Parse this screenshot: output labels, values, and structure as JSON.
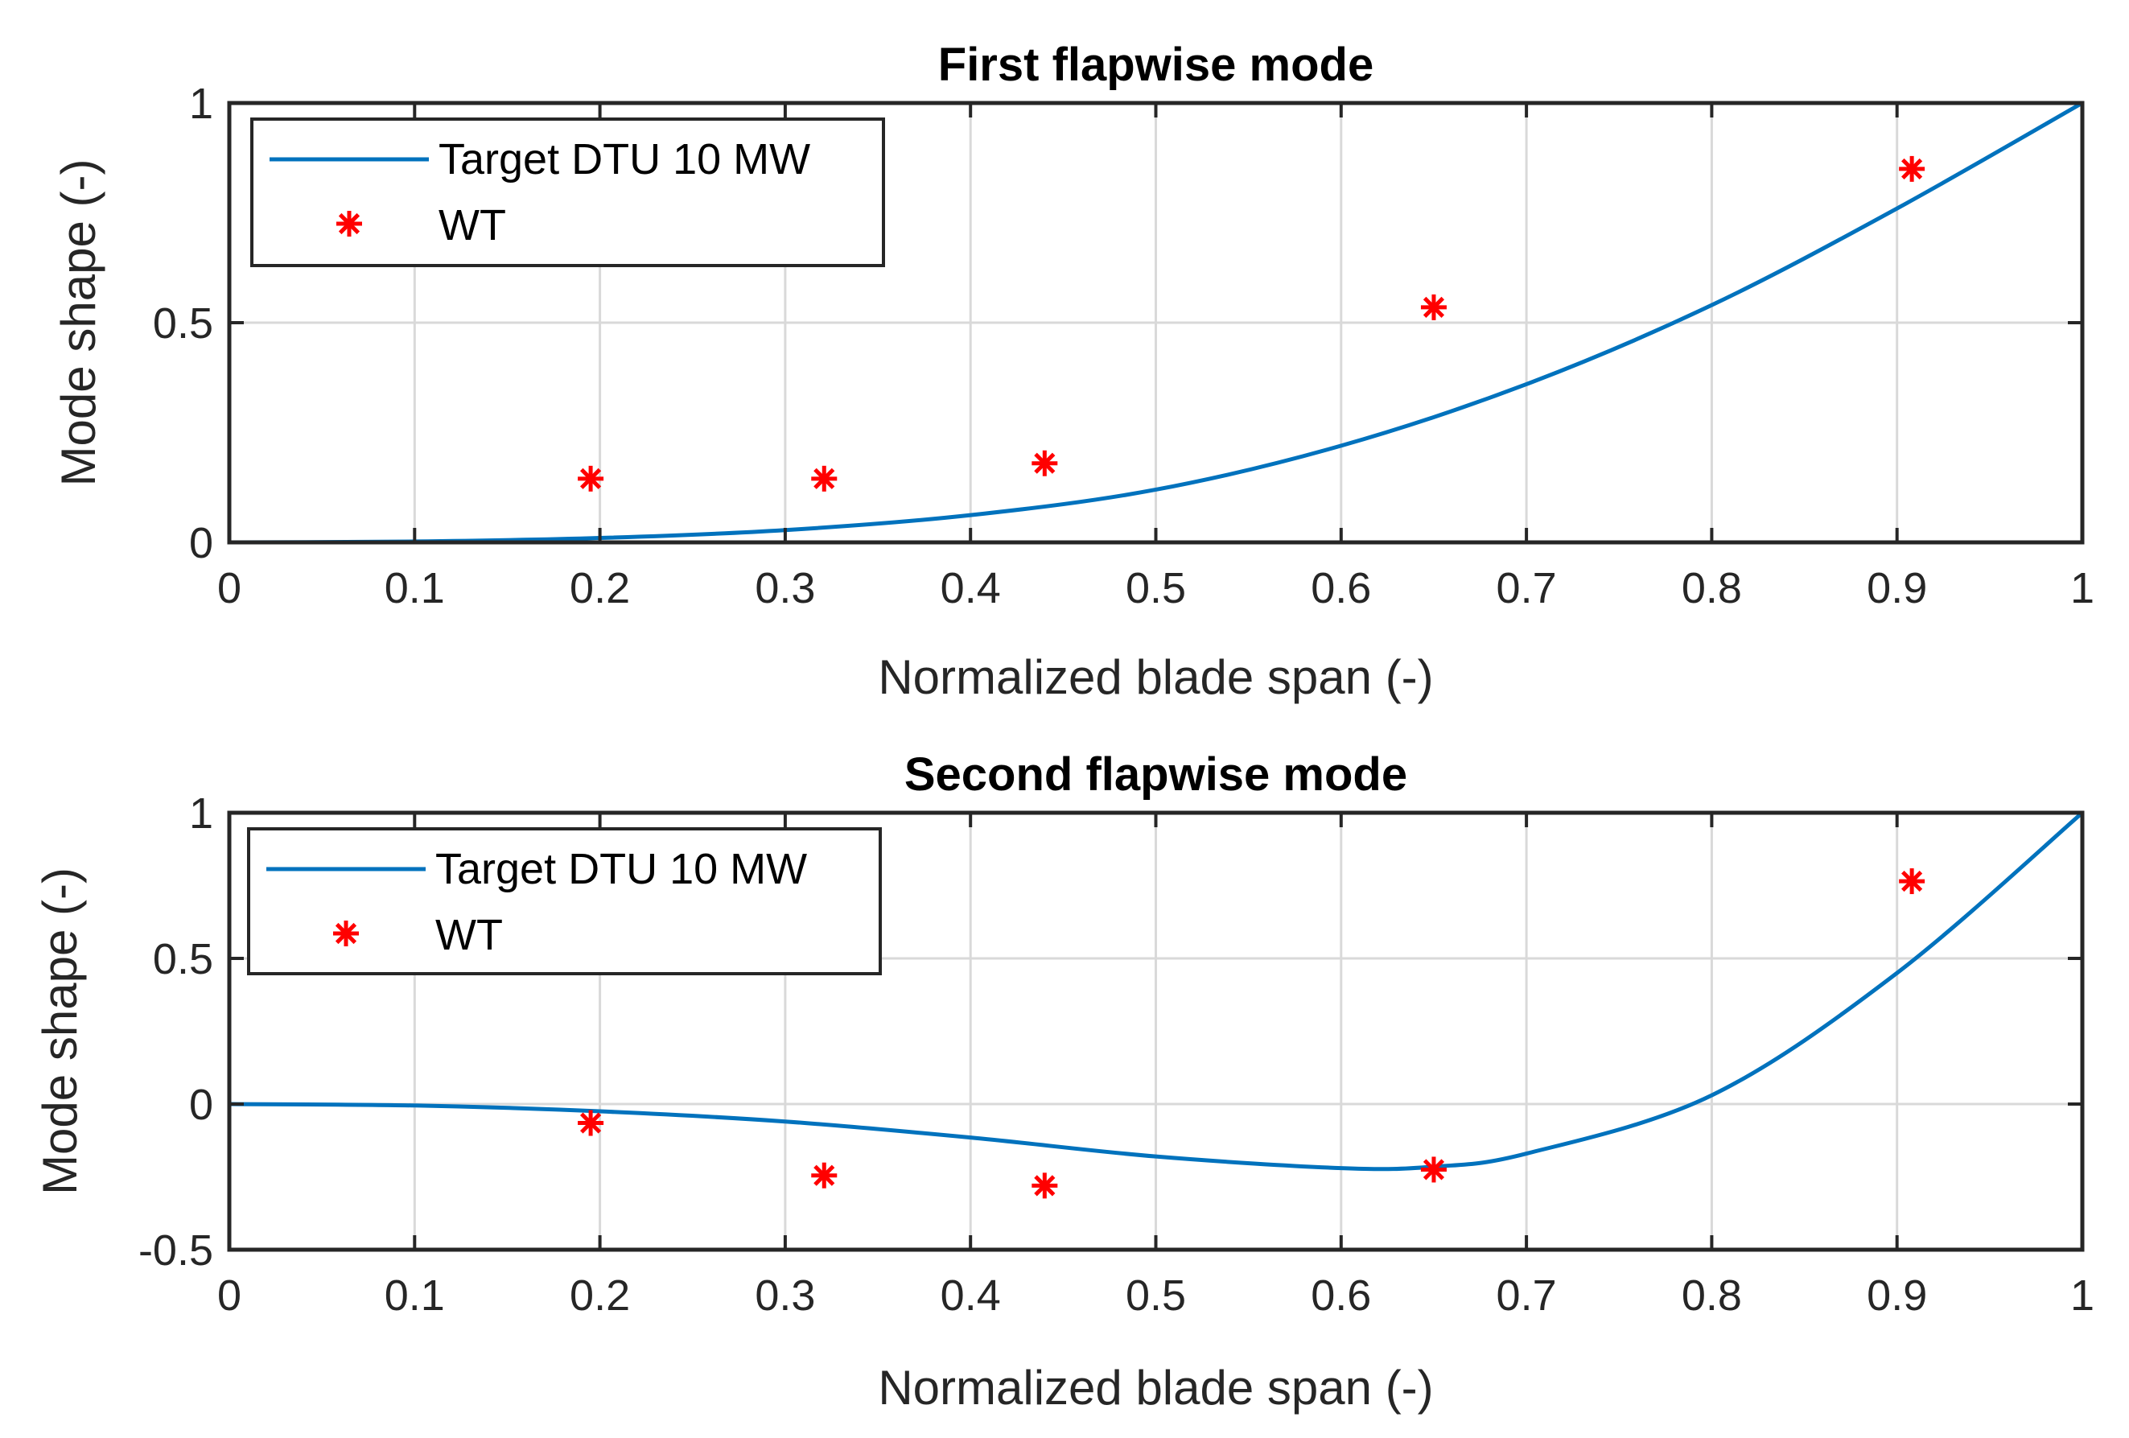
{
  "colors": {
    "line": "#0072BD",
    "marker": "#FF0000",
    "axis": "#262626",
    "grid": "#D9D9D9"
  },
  "chart_data": [
    {
      "type": "line",
      "title": "First flapwise mode",
      "xlabel": "Normalized blade span (-)",
      "ylabel": "Mode shape (-)",
      "xlim": [
        0,
        1
      ],
      "ylim": [
        0,
        1
      ],
      "xticks": [
        0,
        0.1,
        0.2,
        0.3,
        0.4,
        0.5,
        0.6,
        0.7,
        0.8,
        0.9,
        1
      ],
      "xtick_labels": [
        "0",
        "0.1",
        "0.2",
        "0.3",
        "0.4",
        "0.5",
        "0.6",
        "0.7",
        "0.8",
        "0.9",
        "1"
      ],
      "yticks": [
        0,
        0.5,
        1
      ],
      "ytick_labels": [
        "0",
        "0.5",
        "1"
      ],
      "grid": true,
      "legend_position": "top-left",
      "series": [
        {
          "name": "Target DTU 10 MW",
          "style": "line",
          "x": [
            0,
            0.1,
            0.2,
            0.3,
            0.4,
            0.5,
            0.6,
            0.7,
            0.8,
            0.9,
            1.0
          ],
          "y": [
            0,
            0.002,
            0.01,
            0.028,
            0.062,
            0.12,
            0.22,
            0.36,
            0.54,
            0.76,
            1.0
          ]
        },
        {
          "name": "WT",
          "style": "marker",
          "x": [
            0.195,
            0.321,
            0.44,
            0.65,
            0.908
          ],
          "y": [
            0.145,
            0.145,
            0.18,
            0.535,
            0.85
          ]
        }
      ]
    },
    {
      "type": "line",
      "title": "Second flapwise mode",
      "xlabel": "Normalized blade span (-)",
      "ylabel": "Mode shape (-)",
      "xlim": [
        0,
        1
      ],
      "ylim": [
        -0.5,
        1
      ],
      "xticks": [
        0,
        0.1,
        0.2,
        0.3,
        0.4,
        0.5,
        0.6,
        0.7,
        0.8,
        0.9,
        1
      ],
      "xtick_labels": [
        "0",
        "0.1",
        "0.2",
        "0.3",
        "0.4",
        "0.5",
        "0.6",
        "0.7",
        "0.8",
        "0.9",
        "1"
      ],
      "yticks": [
        -0.5,
        0,
        0.5,
        1
      ],
      "ytick_labels": [
        "-0.5",
        "0",
        "0.5",
        "1"
      ],
      "grid": true,
      "legend_position": "top-left",
      "series": [
        {
          "name": "Target DTU 10 MW",
          "style": "line",
          "x": [
            0,
            0.1,
            0.2,
            0.3,
            0.4,
            0.5,
            0.6,
            0.65,
            0.7,
            0.8,
            0.9,
            1.0
          ],
          "y": [
            0,
            -0.005,
            -0.025,
            -0.06,
            -0.115,
            -0.18,
            -0.22,
            -0.215,
            -0.17,
            0.03,
            0.45,
            1.0
          ]
        },
        {
          "name": "WT",
          "style": "marker",
          "x": [
            0.195,
            0.321,
            0.44,
            0.65,
            0.908
          ],
          "y": [
            -0.065,
            -0.245,
            -0.28,
            -0.225,
            0.765
          ]
        }
      ]
    }
  ]
}
